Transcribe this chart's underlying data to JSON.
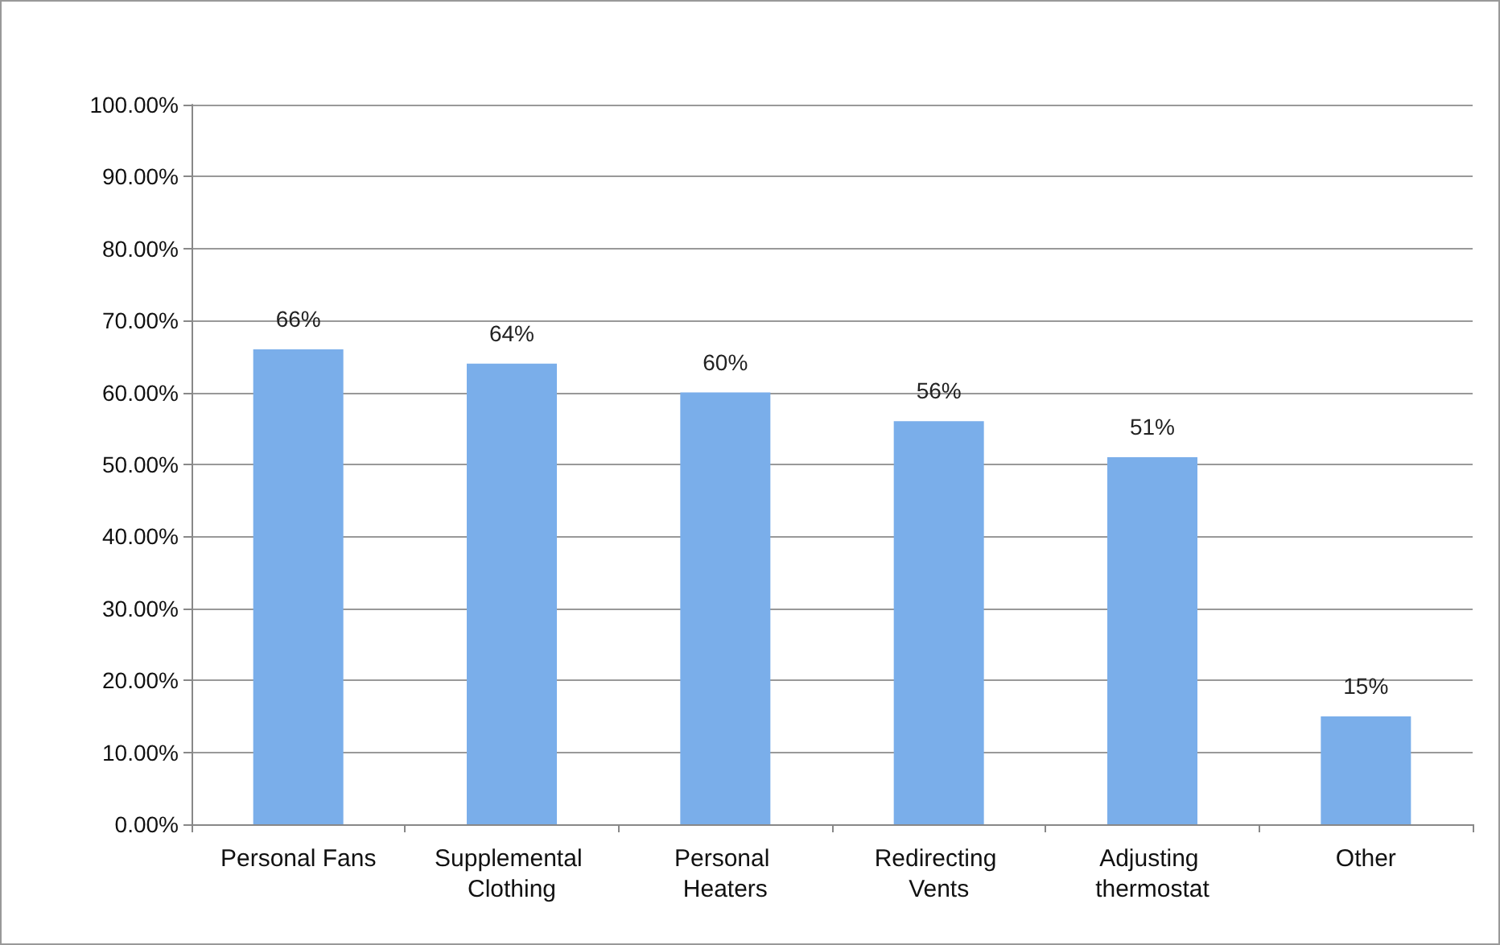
{
  "chart_data": {
    "type": "bar",
    "categories": [
      "Personal Fans",
      "Supplemental Clothing",
      "Personal Heaters",
      "Redirecting Vents",
      "Adjusting thermostat",
      "Other"
    ],
    "values": [
      66,
      64,
      60,
      56,
      51,
      15
    ],
    "value_labels": [
      "66%",
      "64%",
      "60%",
      "56%",
      "51%",
      "15%"
    ],
    "color": "#7aaeea",
    "ylim": [
      0,
      100
    ],
    "yticks": [
      {
        "value": 0,
        "label": "0.00%"
      },
      {
        "value": 10,
        "label": "10.00%"
      },
      {
        "value": 20,
        "label": "20.00%"
      },
      {
        "value": 30,
        "label": "30.00%"
      },
      {
        "value": 40,
        "label": "40.00%"
      },
      {
        "value": 50,
        "label": "50.00%"
      },
      {
        "value": 60,
        "label": "60.00%"
      },
      {
        "value": 70,
        "label": "70.00%"
      },
      {
        "value": 80,
        "label": "80.00%"
      },
      {
        "value": 90,
        "label": "90.00%"
      },
      {
        "value": 100,
        "label": "100.00%"
      }
    ],
    "grid": "y"
  }
}
